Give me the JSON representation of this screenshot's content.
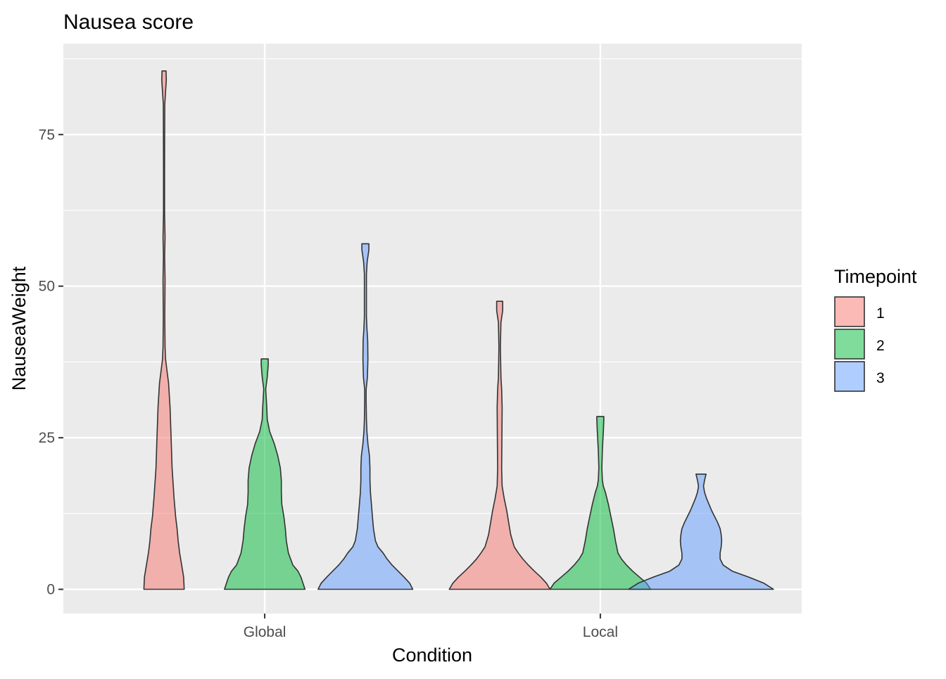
{
  "chart_data": {
    "type": "violin",
    "title": "Nausea score",
    "xlabel": "Condition",
    "ylabel": "NauseaWeight",
    "categories": [
      "Global",
      "Local"
    ],
    "yticks": [
      0,
      25,
      50,
      75
    ],
    "ylim": [
      -4,
      90
    ],
    "grid": true,
    "legend": {
      "title": "Timepoint",
      "position": "right"
    },
    "colors": {
      "1": "#F8766D",
      "2": "#00BA38",
      "3": "#619CFF"
    },
    "series": [
      {
        "name": "1",
        "groups": [
          {
            "category": "Global",
            "min": 0,
            "max": 85.5,
            "profile": [
              [
                0,
                0.4
              ],
              [
                2,
                0.39
              ],
              [
                4,
                0.35
              ],
              [
                6,
                0.31
              ],
              [
                8,
                0.28
              ],
              [
                10,
                0.26
              ],
              [
                12,
                0.23
              ],
              [
                15,
                0.2
              ],
              [
                20,
                0.16
              ],
              [
                25,
                0.14
              ],
              [
                30,
                0.12
              ],
              [
                34,
                0.09
              ],
              [
                36,
                0.06
              ],
              [
                38,
                0.03
              ],
              [
                40,
                0.02
              ],
              [
                45,
                0.015
              ],
              [
                51,
                0.02
              ],
              [
                55,
                0.012
              ],
              [
                58,
                0.02
              ],
              [
                62,
                0.01
              ],
              [
                70,
                0.01
              ],
              [
                75,
                0.012
              ],
              [
                80,
                0.015
              ],
              [
                84,
                0.045
              ],
              [
                85.5,
                0.04
              ]
            ]
          },
          {
            "category": "Local",
            "min": 0,
            "max": 47.5,
            "profile": [
              [
                0,
                1.0
              ],
              [
                1,
                0.93
              ],
              [
                2,
                0.82
              ],
              [
                3,
                0.69
              ],
              [
                4,
                0.57
              ],
              [
                5,
                0.46
              ],
              [
                6,
                0.37
              ],
              [
                7,
                0.29
              ],
              [
                9,
                0.22
              ],
              [
                11,
                0.18
              ],
              [
                13,
                0.14
              ],
              [
                15,
                0.09
              ],
              [
                17,
                0.05
              ],
              [
                20,
                0.04
              ],
              [
                25,
                0.045
              ],
              [
                30,
                0.05
              ],
              [
                33,
                0.04
              ],
              [
                35,
                0.025
              ],
              [
                40,
                0.015
              ],
              [
                44,
                0.025
              ],
              [
                46,
                0.06
              ],
              [
                47.5,
                0.06
              ]
            ]
          }
        ]
      },
      {
        "name": "2",
        "groups": [
          {
            "category": "Global",
            "min": 0,
            "max": 38,
            "profile": [
              [
                0,
                0.8
              ],
              [
                2,
                0.72
              ],
              [
                3,
                0.66
              ],
              [
                4,
                0.56
              ],
              [
                6,
                0.47
              ],
              [
                8,
                0.43
              ],
              [
                10,
                0.41
              ],
              [
                12,
                0.38
              ],
              [
                14,
                0.34
              ],
              [
                16,
                0.33
              ],
              [
                18,
                0.33
              ],
              [
                20,
                0.31
              ],
              [
                22,
                0.26
              ],
              [
                24,
                0.19
              ],
              [
                26,
                0.1
              ],
              [
                28,
                0.05
              ],
              [
                30,
                0.04
              ],
              [
                33,
                0.02
              ],
              [
                35,
                0.05
              ],
              [
                37,
                0.07
              ],
              [
                38,
                0.07
              ]
            ]
          },
          {
            "category": "Local",
            "min": 0,
            "max": 28.5,
            "profile": [
              [
                0,
                1.0
              ],
              [
                1,
                0.92
              ],
              [
                2,
                0.78
              ],
              [
                3,
                0.64
              ],
              [
                4,
                0.52
              ],
              [
                5,
                0.42
              ],
              [
                6,
                0.35
              ],
              [
                8,
                0.3
              ],
              [
                10,
                0.26
              ],
              [
                12,
                0.21
              ],
              [
                14,
                0.16
              ],
              [
                16,
                0.1
              ],
              [
                17,
                0.06
              ],
              [
                18,
                0.04
              ],
              [
                20,
                0.03
              ],
              [
                23,
                0.04
              ],
              [
                26,
                0.06
              ],
              [
                28,
                0.07
              ],
              [
                28.5,
                0.07
              ]
            ]
          }
        ]
      },
      {
        "name": "3",
        "groups": [
          {
            "category": "Global",
            "min": 0,
            "max": 57,
            "profile": [
              [
                0,
                0.94
              ],
              [
                1,
                0.88
              ],
              [
                2,
                0.77
              ],
              [
                3,
                0.65
              ],
              [
                4,
                0.53
              ],
              [
                5,
                0.43
              ],
              [
                6,
                0.35
              ],
              [
                7,
                0.25
              ],
              [
                8,
                0.2
              ],
              [
                10,
                0.16
              ],
              [
                12,
                0.14
              ],
              [
                14,
                0.12
              ],
              [
                16,
                0.1
              ],
              [
                18,
                0.09
              ],
              [
                20,
                0.09
              ],
              [
                22,
                0.08
              ],
              [
                24,
                0.05
              ],
              [
                26,
                0.03
              ],
              [
                28,
                0.02
              ],
              [
                31,
                0.015
              ],
              [
                33,
                0.015
              ],
              [
                35,
                0.04
              ],
              [
                38,
                0.05
              ],
              [
                41,
                0.045
              ],
              [
                43,
                0.03
              ],
              [
                45,
                0.02
              ],
              [
                48,
                0.02
              ],
              [
                52,
                0.02
              ],
              [
                54,
                0.035
              ],
              [
                56,
                0.07
              ],
              [
                57,
                0.07
              ]
            ]
          },
          {
            "category": "Local",
            "min": 0,
            "max": 19,
            "profile": [
              [
                0,
                1.44
              ],
              [
                1,
                1.25
              ],
              [
                2,
                0.95
              ],
              [
                3,
                0.62
              ],
              [
                4,
                0.44
              ],
              [
                5,
                0.38
              ],
              [
                6,
                0.38
              ],
              [
                7,
                0.4
              ],
              [
                8,
                0.41
              ],
              [
                9,
                0.4
              ],
              [
                10,
                0.38
              ],
              [
                11,
                0.33
              ],
              [
                12,
                0.27
              ],
              [
                13,
                0.21
              ],
              [
                14,
                0.16
              ],
              [
                15,
                0.11
              ],
              [
                16,
                0.07
              ],
              [
                17,
                0.05
              ],
              [
                18,
                0.07
              ],
              [
                19,
                0.1
              ]
            ]
          }
        ]
      }
    ]
  }
}
